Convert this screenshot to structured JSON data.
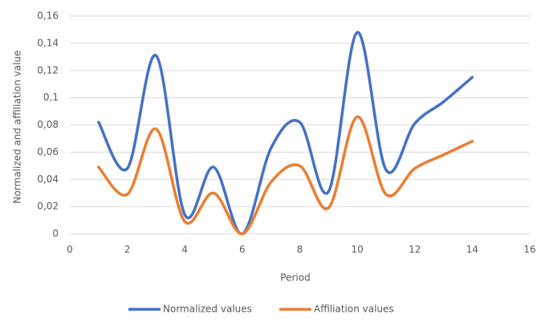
{
  "chart_data": {
    "type": "line",
    "x_label": "Period",
    "y_label": "Normalized and affiliation value",
    "x": [
      1,
      2,
      3,
      4,
      5,
      6,
      7,
      8,
      9,
      10,
      11,
      12,
      13,
      14
    ],
    "series": [
      {
        "name": "Normalized values",
        "color": "#4472c4",
        "values": [
          0.082,
          0.048,
          0.131,
          0.014,
          0.049,
          0.0,
          0.063,
          0.082,
          0.031,
          0.148,
          0.047,
          0.081,
          0.097,
          0.115
        ]
      },
      {
        "name": "Affiliation values",
        "color": "#ed7d31",
        "values": [
          0.049,
          0.029,
          0.077,
          0.009,
          0.03,
          0.0,
          0.038,
          0.05,
          0.019,
          0.086,
          0.029,
          0.048,
          0.058,
          0.068
        ]
      }
    ],
    "xlim": [
      0,
      16
    ],
    "xticks": [
      0,
      2,
      4,
      6,
      8,
      10,
      12,
      14,
      16
    ],
    "ylim": [
      0,
      0.16
    ],
    "yticks": [
      0,
      {
        "value": 0.02,
        "label": "0,02"
      },
      {
        "value": 0.04,
        "label": "0,04"
      },
      {
        "value": 0.06,
        "label": "0,06"
      },
      {
        "value": 0.08,
        "label": "0,08"
      },
      {
        "value": 0.1,
        "label": "0,1"
      },
      {
        "value": 0.12,
        "label": "0,12"
      },
      {
        "value": 0.14,
        "label": "0,14"
      },
      {
        "value": 0.16,
        "label": "0,16"
      }
    ],
    "grid": true,
    "smooth": true,
    "legend": "bottom"
  }
}
